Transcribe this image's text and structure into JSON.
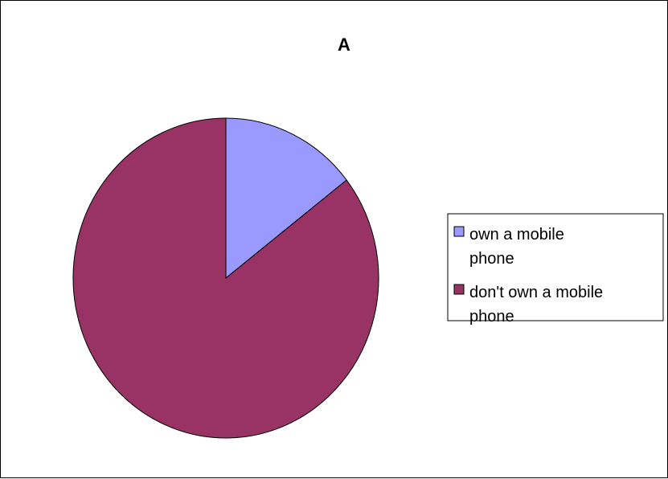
{
  "chart_data": {
    "type": "pie",
    "title": "A",
    "categories": [
      "own a mobile phone",
      "don't own a mobile phone"
    ],
    "values": [
      14.5,
      85.5
    ],
    "colors": [
      "#9999FF",
      "#993366"
    ],
    "legend": {
      "placement": "right",
      "entries": [
        {
          "lines": [
            "own a mobile",
            "phone"
          ]
        },
        {
          "lines": [
            "don't own a mobile",
            "phone"
          ]
        }
      ]
    }
  }
}
